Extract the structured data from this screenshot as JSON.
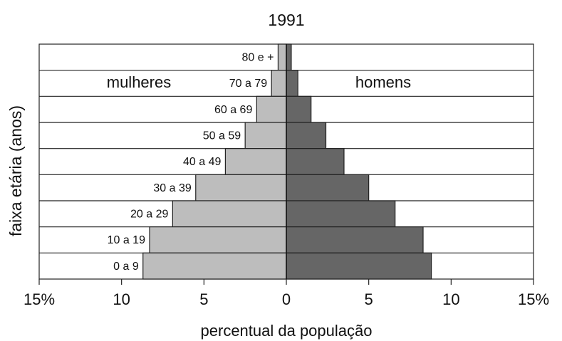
{
  "chart_data": {
    "type": "pyramid",
    "title": "1991",
    "x_label": "percentual da população",
    "y_label": "faixa etária (anos)",
    "categories": [
      "80 e +",
      "70 a 79",
      "60 a 69",
      "50 a 59",
      "40 a 49",
      "30 a 39",
      "20 a 29",
      "10 a 19",
      "0 a 9"
    ],
    "series": [
      {
        "name": "mulheres",
        "color": "#bdbdbd",
        "side": "left",
        "values": [
          0.5,
          0.9,
          1.8,
          2.5,
          3.7,
          5.5,
          6.9,
          8.3,
          8.7
        ]
      },
      {
        "name": "homens",
        "color": "#666666",
        "side": "right",
        "values": [
          0.3,
          0.7,
          1.5,
          2.4,
          3.5,
          5.0,
          6.6,
          8.3,
          8.8
        ]
      }
    ],
    "xlim": [
      -15,
      15
    ],
    "xticks": [
      {
        "value": -15,
        "label": "15%"
      },
      {
        "value": -10,
        "label": "10"
      },
      {
        "value": -5,
        "label": "5"
      },
      0,
      5,
      10,
      {
        "value": 15,
        "label": "15%"
      }
    ]
  }
}
